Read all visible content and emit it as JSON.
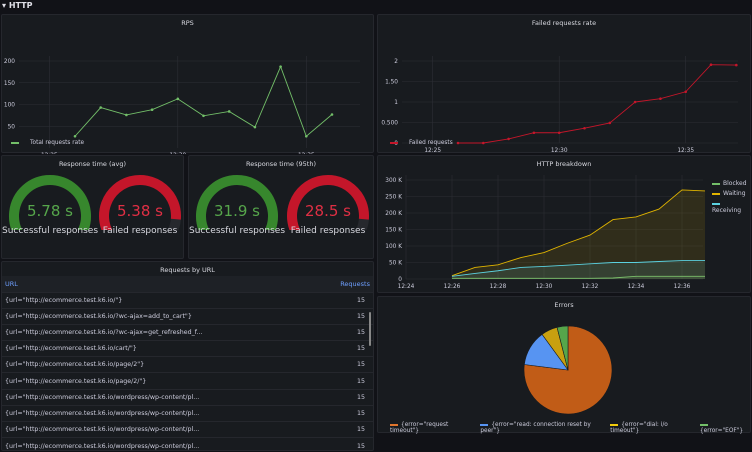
{
  "row": {
    "title": "HTTP"
  },
  "colors": {
    "green": "#73bf69",
    "red": "#c4162a",
    "yellow": "#e0b400",
    "cyan": "#5bd1e0",
    "orange": "#e0752d",
    "blue": "#5794f2"
  },
  "rps": {
    "title": "RPS",
    "legend": "Total requests rate",
    "chart_data": {
      "type": "line",
      "x": [
        "12:26",
        "12:27",
        "12:28",
        "12:29",
        "12:30",
        "12:31",
        "12:32",
        "12:33",
        "12:34",
        "12:35",
        "12:36"
      ],
      "series": [
        {
          "name": "Total requests rate",
          "values": [
            27,
            93,
            76,
            88,
            113,
            74,
            84,
            48,
            187,
            27,
            77
          ]
        }
      ],
      "yticks": [
        "50",
        "100",
        "150",
        "200"
      ],
      "xticks": [
        "12:25",
        "12:30",
        "12:35"
      ],
      "ylim": [
        0,
        200
      ]
    }
  },
  "failed": {
    "title": "Failed requests rate",
    "legend": "Failed requests",
    "chart_data": {
      "type": "line",
      "x": [
        "12:26",
        "12:27",
        "12:28",
        "12:29",
        "12:30",
        "12:31",
        "12:32",
        "12:33",
        "12:34",
        "12:35",
        "12:36",
        "12:37"
      ],
      "series": [
        {
          "name": "Failed requests",
          "values": [
            0,
            0,
            0.1,
            0.25,
            0.25,
            0.36,
            0.49,
            1.0,
            1.08,
            1.25,
            1.91,
            1.9
          ]
        }
      ],
      "yticks": [
        "0",
        "0.500",
        "1",
        "1.50",
        "2"
      ],
      "xticks": [
        "12:25",
        "12:30",
        "12:35"
      ],
      "ylim": [
        0,
        2
      ]
    }
  },
  "resp_avg": {
    "title": "Response time (avg)",
    "gauges": [
      {
        "value": "5.78 s",
        "label": "Successful responses",
        "fill": 1.0
      },
      {
        "value": "5.38 s",
        "label": "Failed responses",
        "fill": 0.88
      }
    ]
  },
  "resp_95": {
    "title": "Response time (95th)",
    "gauges": [
      {
        "value": "31.9 s",
        "label": "Successful responses",
        "fill": 1.0
      },
      {
        "value": "28.5 s",
        "label": "Failed responses",
        "fill": 0.88
      }
    ]
  },
  "breakdown": {
    "title": "HTTP breakdown",
    "chart_data": {
      "type": "area",
      "x": [
        "12:26",
        "12:27",
        "12:28",
        "12:29",
        "12:30",
        "12:31",
        "12:32",
        "12:33",
        "12:34",
        "12:35",
        "12:36",
        "12:37"
      ],
      "series": [
        {
          "name": "Blocked",
          "values": [
            2000,
            2000,
            2000,
            2000,
            2000,
            2000,
            2000,
            3000,
            8000,
            8000,
            8000,
            8000
          ]
        },
        {
          "name": "Waiting",
          "values": [
            10000,
            35000,
            43000,
            65000,
            80000,
            108000,
            133000,
            180000,
            188000,
            212000,
            270000,
            267000
          ]
        },
        {
          "name": "Receiving",
          "values": [
            8000,
            17000,
            25000,
            35000,
            38000,
            42000,
            46000,
            50000,
            50000,
            53000,
            56000,
            56000
          ]
        }
      ],
      "yticks": [
        "0",
        "50 K",
        "100 K",
        "150 K",
        "200 K",
        "250 K",
        "300 K"
      ],
      "xticks": [
        "12:24",
        "12:26",
        "12:28",
        "12:30",
        "12:32",
        "12:34",
        "12:36"
      ],
      "ylim": [
        0,
        300000
      ],
      "legend": "right"
    }
  },
  "requests": {
    "title": "Requests by URL",
    "columns": [
      "URL",
      "Requests"
    ],
    "rows": [
      [
        "{url=\"http://ecommerce.test.k6.io/\"}",
        "15"
      ],
      [
        "{url=\"http://ecommerce.test.k6.io/?wc-ajax=add_to_cart\"}",
        "15"
      ],
      [
        "{url=\"http://ecommerce.test.k6.io/?wc-ajax=get_refreshed_f...",
        "15"
      ],
      [
        "{url=\"http://ecommerce.test.k6.io/cart/\"}",
        "15"
      ],
      [
        "{url=\"http://ecommerce.test.k6.io/page/2\"}",
        "15"
      ],
      [
        "{url=\"http://ecommerce.test.k6.io/page/2/\"}",
        "15"
      ],
      [
        "{url=\"http://ecommerce.test.k6.io/wordpress/wp-content/pl...",
        "15"
      ],
      [
        "{url=\"http://ecommerce.test.k6.io/wordpress/wp-content/pl...",
        "15"
      ],
      [
        "{url=\"http://ecommerce.test.k6.io/wordpress/wp-content/pl...",
        "15"
      ],
      [
        "{url=\"http://ecommerce.test.k6.io/wordpress/wp-content/pl...",
        "15"
      ]
    ]
  },
  "errors": {
    "title": "Errors",
    "chart_data": {
      "type": "pie",
      "slices": [
        {
          "name": "{error=\"request timeout\"}",
          "value": 77
        },
        {
          "name": "{error=\"read: connection reset by peer\"}",
          "value": 13
        },
        {
          "name": "{error=\"dial: i/o timeout\"}",
          "value": 6
        },
        {
          "name": "{error=\"EOF\"}",
          "value": 4
        }
      ],
      "legend": "bottom"
    }
  }
}
